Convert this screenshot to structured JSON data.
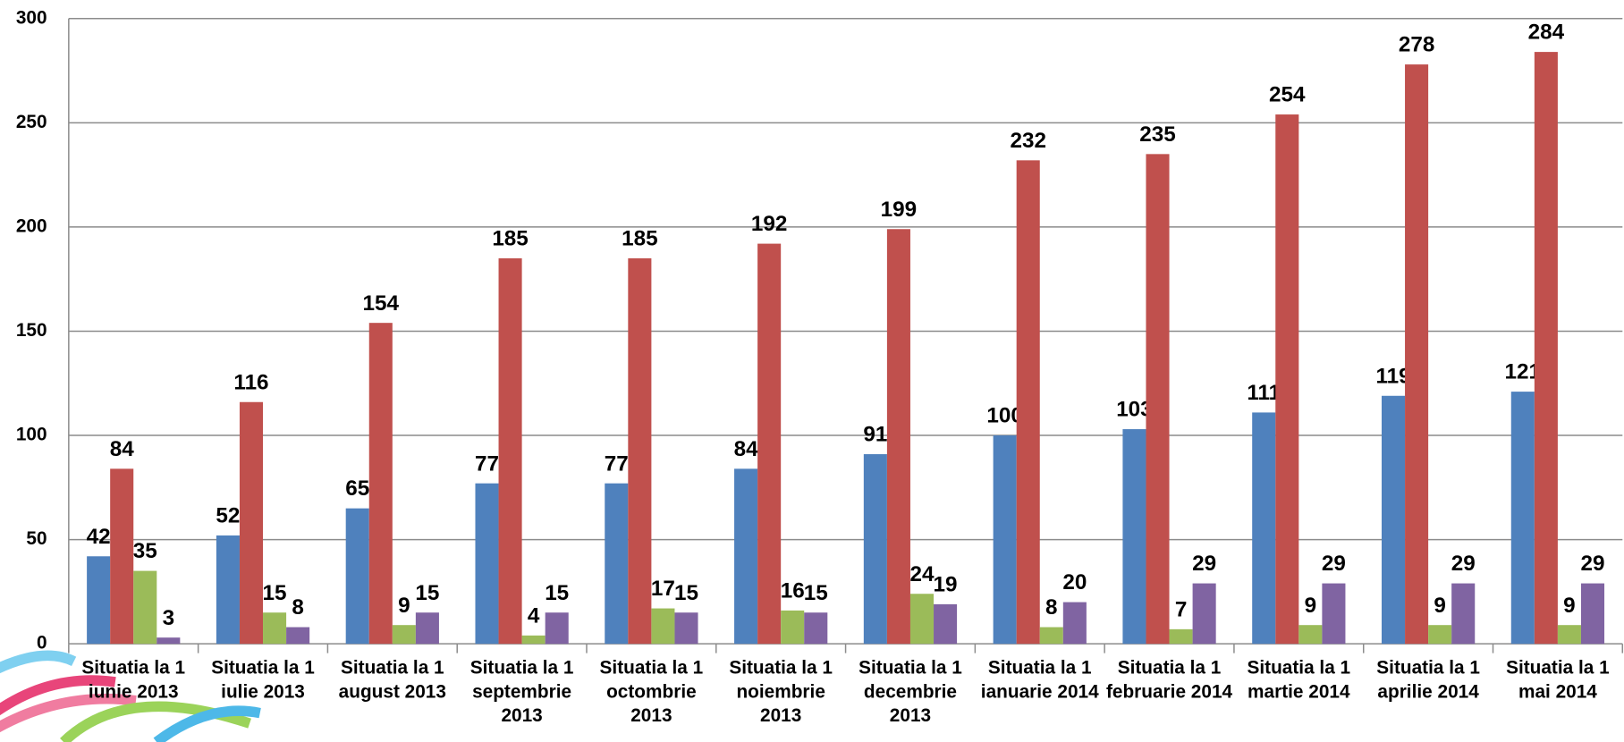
{
  "chart_data": {
    "type": "bar",
    "categories": [
      "Situatia la 1 iunie 2013",
      "Situatia la 1 iulie 2013",
      "Situatia la 1 august 2013",
      "Situatia la 1 septembrie 2013",
      "Situatia la 1 octombrie 2013",
      "Situatia la 1 noiembrie 2013",
      "Situatia la 1 decembrie 2013",
      "Situatia la 1 ianuarie 2014",
      "Situatia la 1 februarie 2014",
      "Situatia la 1 martie 2014",
      "Situatia la 1 aprilie 2014",
      "Situatia la 1 mai 2014"
    ],
    "series": [
      {
        "color": "#4f81bd",
        "values": [
          42,
          52,
          65,
          77,
          77,
          84,
          91,
          100,
          103,
          111,
          119,
          121
        ]
      },
      {
        "color": "#c0504d",
        "values": [
          84,
          116,
          154,
          185,
          185,
          192,
          199,
          232,
          235,
          254,
          278,
          284
        ]
      },
      {
        "color": "#9bbb59",
        "values": [
          35,
          15,
          9,
          4,
          17,
          16,
          24,
          8,
          7,
          9,
          9,
          9
        ]
      },
      {
        "color": "#8064a2",
        "values": [
          3,
          8,
          15,
          15,
          15,
          15,
          19,
          20,
          29,
          29,
          29,
          29
        ]
      }
    ],
    "ylim": [
      0,
      300
    ],
    "yticks": [
      0,
      50,
      100,
      150,
      200,
      250,
      300
    ],
    "grid": true
  }
}
